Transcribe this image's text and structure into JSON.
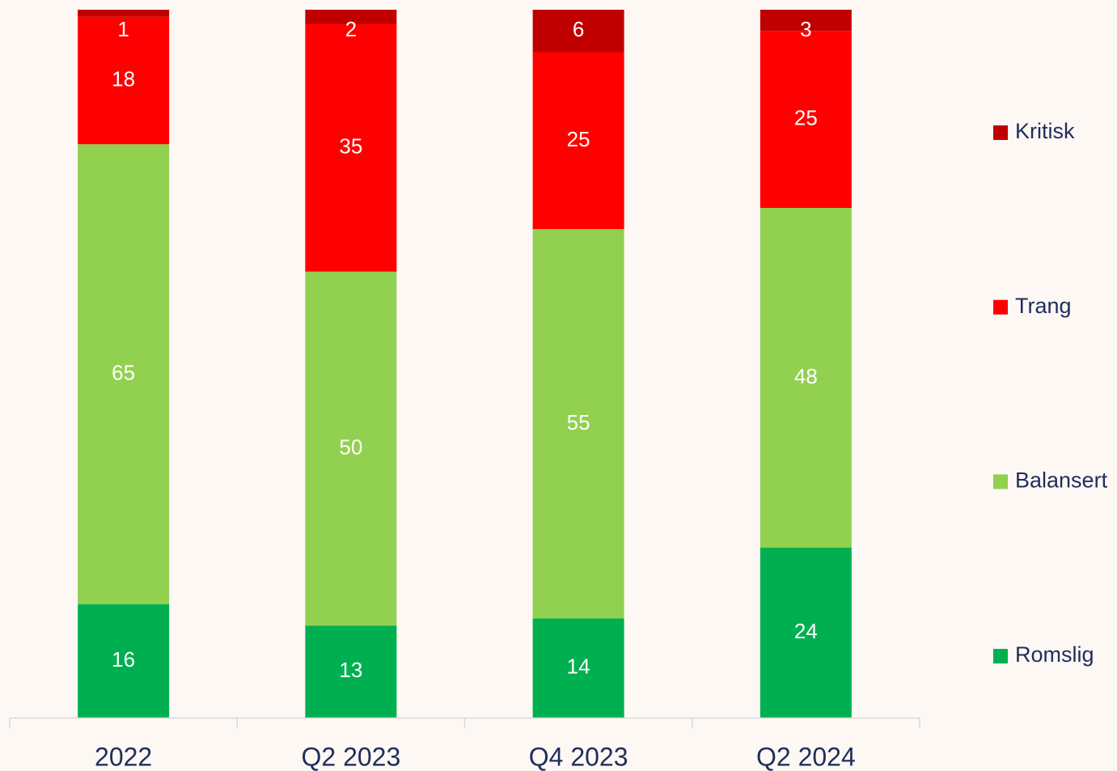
{
  "chart_data": {
    "type": "stacked_bar",
    "categories": [
      "2022",
      "Q2 2023",
      "Q4 2023",
      "Q2 2024"
    ],
    "series": [
      {
        "name": "Romslig",
        "color": "#00b050",
        "values": [
          16,
          13,
          14,
          24
        ]
      },
      {
        "name": "Balansert",
        "color": "#92d050",
        "values": [
          65,
          50,
          55,
          48
        ]
      },
      {
        "name": "Trang",
        "color": "#ff0000",
        "values": [
          18,
          35,
          25,
          25
        ]
      },
      {
        "name": "Kritisk",
        "color": "#c00000",
        "values": [
          1,
          2,
          6,
          3
        ]
      }
    ],
    "legend": "right"
  }
}
